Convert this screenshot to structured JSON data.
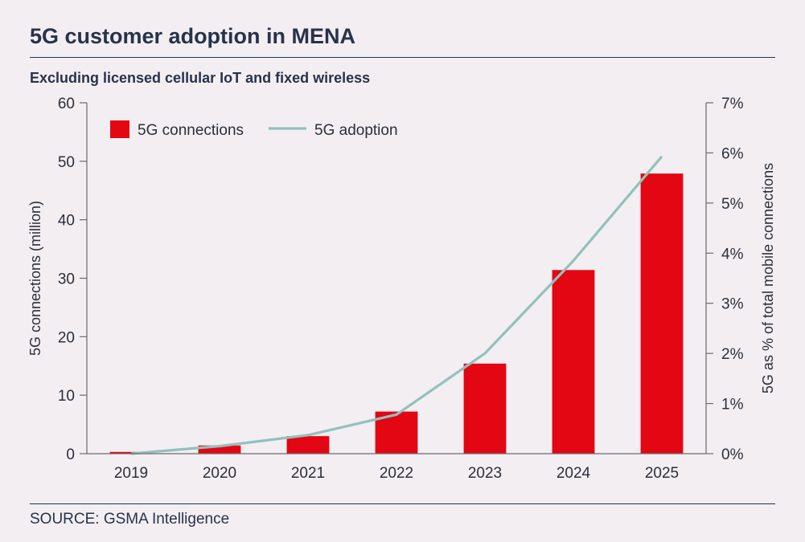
{
  "header": {
    "title": "5G customer adoption in MENA",
    "subtitle": "Excluding licensed cellular IoT and fixed wireless"
  },
  "footer": {
    "source": "SOURCE: GSMA Intelligence"
  },
  "colors": {
    "bar": "#e30613",
    "line": "#93c1bc",
    "text": "#2b2f3a",
    "axis": "#6b6b6b",
    "background": "#f3eef2"
  },
  "chart_data": {
    "type": "bar",
    "categories": [
      "2019",
      "2020",
      "2021",
      "2022",
      "2023",
      "2024",
      "2025"
    ],
    "series": [
      {
        "name": "5G connections",
        "type": "bar",
        "axis": "left",
        "values": [
          0.3,
          1.4,
          3.0,
          7.2,
          15.4,
          31.4,
          47.9
        ]
      },
      {
        "name": "5G adoption",
        "type": "line",
        "axis": "right",
        "values": [
          0.0,
          0.15,
          0.37,
          0.78,
          2.0,
          3.85,
          5.93
        ]
      }
    ],
    "ylabel": "5G connections (million)",
    "ylim": [
      0,
      60
    ],
    "yticks": [
      "0",
      "10",
      "20",
      "30",
      "40",
      "50",
      "60"
    ],
    "y2label": "5G as % of total mobile connections",
    "y2lim": [
      0,
      7
    ],
    "y2ticks": [
      "0%",
      "1%",
      "2%",
      "3%",
      "4%",
      "5%",
      "6%",
      "7%"
    ],
    "legend_position": "top-left",
    "grid": false
  }
}
